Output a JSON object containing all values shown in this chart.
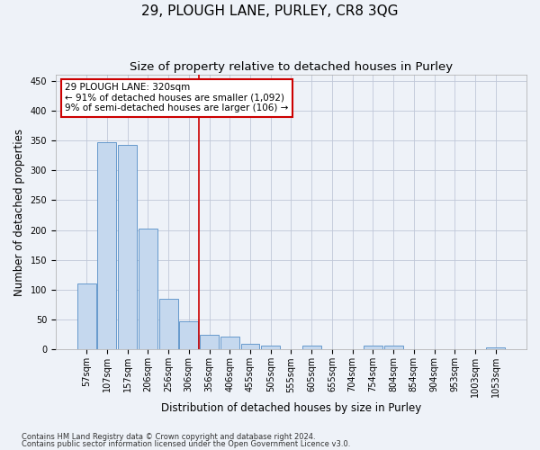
{
  "title": "29, PLOUGH LANE, PURLEY, CR8 3QG",
  "subtitle": "Size of property relative to detached houses in Purley",
  "xlabel": "Distribution of detached houses by size in Purley",
  "ylabel": "Number of detached properties",
  "bins": [
    "57sqm",
    "107sqm",
    "157sqm",
    "206sqm",
    "256sqm",
    "306sqm",
    "356sqm",
    "406sqm",
    "455sqm",
    "505sqm",
    "555sqm",
    "605sqm",
    "655sqm",
    "704sqm",
    "754sqm",
    "804sqm",
    "854sqm",
    "904sqm",
    "953sqm",
    "1003sqm",
    "1053sqm"
  ],
  "values": [
    110,
    347,
    342,
    202,
    85,
    47,
    24,
    21,
    9,
    7,
    0,
    6,
    0,
    0,
    7,
    7,
    0,
    0,
    0,
    0,
    4
  ],
  "bar_color": "#c5d8ee",
  "bar_edge_color": "#6699cc",
  "vline_x": 5.5,
  "vline_color": "#cc0000",
  "annotation_title": "29 PLOUGH LANE: 320sqm",
  "annotation_line1": "← 91% of detached houses are smaller (1,092)",
  "annotation_line2": "9% of semi-detached houses are larger (106) →",
  "annotation_box_color": "#cc0000",
  "ylim": [
    0,
    460
  ],
  "yticks": [
    0,
    50,
    100,
    150,
    200,
    250,
    300,
    350,
    400,
    450
  ],
  "footer1": "Contains HM Land Registry data © Crown copyright and database right 2024.",
  "footer2": "Contains public sector information licensed under the Open Government Licence v3.0.",
  "bg_color": "#eef2f8",
  "plot_bg_color": "#eef2f8",
  "title_fontsize": 11,
  "subtitle_fontsize": 9.5,
  "axis_label_fontsize": 8.5,
  "tick_fontsize": 7,
  "footer_fontsize": 6
}
